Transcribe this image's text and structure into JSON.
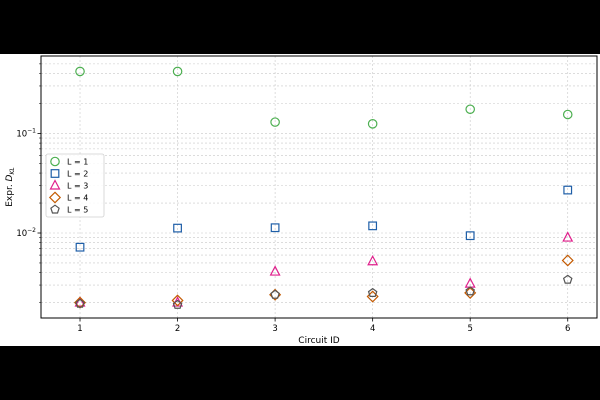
{
  "chart_data": {
    "type": "scatter",
    "xlabel": "Circuit ID",
    "ylabel_prefix": "Expr. ",
    "ylabel_symbol": "D",
    "ylabel_subscript": "KL",
    "y_scale": "log",
    "ylim": [
      0.0014,
      0.6
    ],
    "xlim": [
      0.6,
      6.3
    ],
    "x_ticks": [
      1,
      2,
      3,
      4,
      5,
      6
    ],
    "y_ticks": [
      {
        "value": 0.01,
        "base": "10",
        "exp": "−2"
      },
      {
        "value": 0.1,
        "base": "10",
        "exp": "−1"
      }
    ],
    "grid": true,
    "legend_position": "middle-left",
    "series": [
      {
        "name": "L = 1",
        "marker": "circle",
        "color": "#4caf50",
        "x": [
          1,
          2,
          3,
          4,
          5,
          6
        ],
        "y": [
          0.42,
          0.42,
          0.13,
          0.125,
          0.175,
          0.155
        ]
      },
      {
        "name": "L = 2",
        "marker": "square",
        "color": "#1f5fa8",
        "x": [
          1,
          2,
          3,
          4,
          5,
          6
        ],
        "y": [
          0.0072,
          0.0112,
          0.0113,
          0.0118,
          0.0094,
          0.027
        ]
      },
      {
        "name": "L = 3",
        "marker": "triangle",
        "color": "#e0208c",
        "x": [
          1,
          2,
          3,
          4,
          5,
          6
        ],
        "y": [
          0.002,
          0.002,
          0.0041,
          0.0052,
          0.0031,
          0.009
        ]
      },
      {
        "name": "L = 4",
        "marker": "diamond",
        "color": "#c45a00",
        "x": [
          1,
          2,
          3,
          4,
          5,
          6
        ],
        "y": [
          0.002,
          0.0021,
          0.0024,
          0.0023,
          0.0025,
          0.0053
        ]
      },
      {
        "name": "L = 5",
        "marker": "pentagon",
        "color": "#555555",
        "x": [
          1,
          2,
          3,
          4,
          5,
          6
        ],
        "y": [
          0.00195,
          0.0019,
          0.0024,
          0.0025,
          0.0026,
          0.0034
        ]
      }
    ]
  }
}
